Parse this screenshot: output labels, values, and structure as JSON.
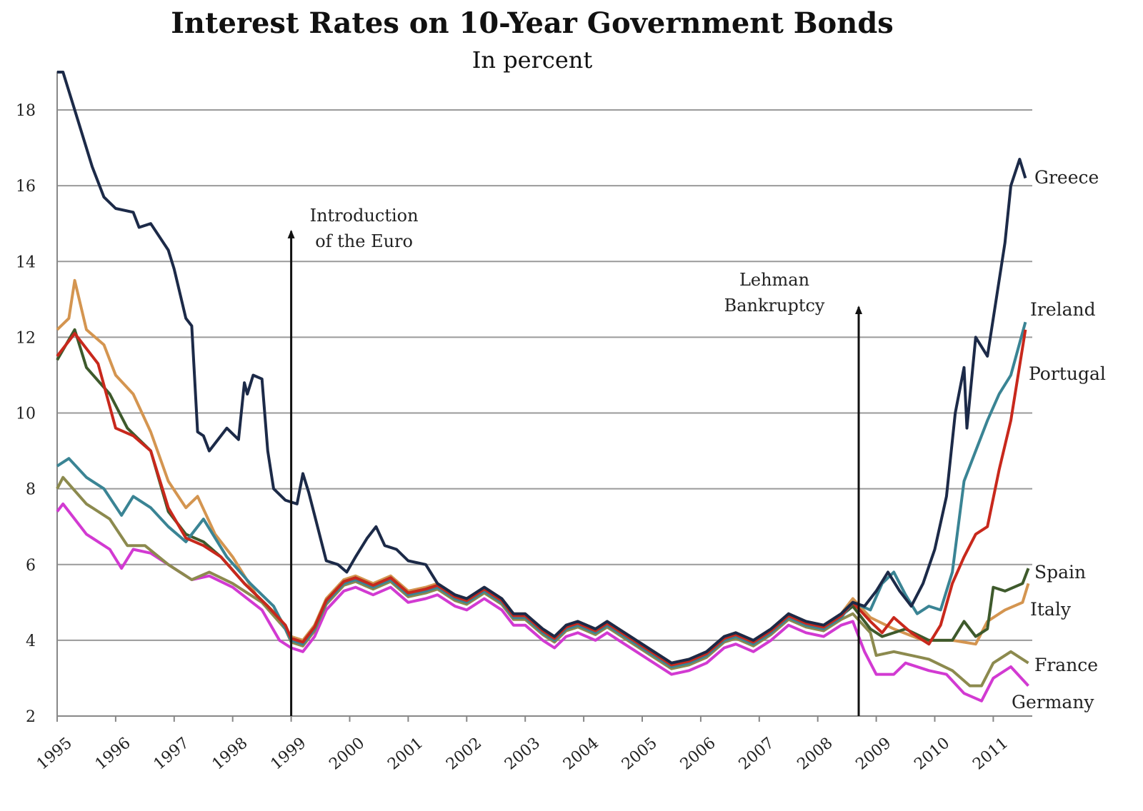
{
  "chart_data": {
    "type": "line",
    "title": "Interest Rates on 10-Year Government Bonds",
    "subtitle": "In percent",
    "xlabel": "",
    "ylabel": "",
    "xlim": [
      1995,
      2011.7
    ],
    "ylim": [
      2,
      19
    ],
    "grid": true,
    "y_ticks": [
      2,
      4,
      6,
      8,
      10,
      12,
      14,
      16,
      18
    ],
    "x_ticks": [
      1995,
      1996,
      1997,
      1998,
      1999,
      2000,
      2001,
      2002,
      2003,
      2004,
      2005,
      2006,
      2007,
      2008,
      2009,
      2010,
      2011
    ],
    "annotations": [
      {
        "lines": [
          "Introduction",
          "of the Euro"
        ],
        "x": 1999.0,
        "y_top": 14.8
      },
      {
        "lines": [
          "Lehman",
          "Bankruptcy"
        ],
        "x": 2008.7,
        "y_top": 12.8
      }
    ],
    "shared_period": {
      "note": "period where all series move together",
      "points": [
        [
          1999.0,
          4.0
        ],
        [
          1999.2,
          3.9
        ],
        [
          1999.4,
          4.3
        ],
        [
          1999.6,
          5.0
        ],
        [
          1999.9,
          5.5
        ],
        [
          2000.1,
          5.6
        ],
        [
          2000.4,
          5.4
        ],
        [
          2000.7,
          5.6
        ],
        [
          2001.0,
          5.2
        ],
        [
          2001.3,
          5.3
        ],
        [
          2001.5,
          5.4
        ],
        [
          2001.8,
          5.1
        ],
        [
          2002.0,
          5.0
        ],
        [
          2002.3,
          5.3
        ],
        [
          2002.6,
          5.0
        ],
        [
          2002.8,
          4.6
        ],
        [
          2003.0,
          4.6
        ],
        [
          2003.3,
          4.2
        ],
        [
          2003.5,
          4.0
        ],
        [
          2003.7,
          4.3
        ],
        [
          2003.9,
          4.4
        ],
        [
          2004.2,
          4.2
        ],
        [
          2004.4,
          4.4
        ],
        [
          2004.6,
          4.2
        ],
        [
          2004.9,
          3.9
        ],
        [
          2005.2,
          3.6
        ],
        [
          2005.5,
          3.3
        ],
        [
          2005.8,
          3.4
        ],
        [
          2006.1,
          3.6
        ],
        [
          2006.4,
          4.0
        ],
        [
          2006.6,
          4.1
        ],
        [
          2006.9,
          3.9
        ],
        [
          2007.2,
          4.2
        ],
        [
          2007.5,
          4.6
        ],
        [
          2007.8,
          4.4
        ],
        [
          2008.1,
          4.3
        ],
        [
          2008.4,
          4.6
        ]
      ]
    },
    "series": [
      {
        "name": "Germany",
        "color": "#d23ad2",
        "shared_offset": -0.2,
        "before": [
          [
            1995.0,
            7.4
          ],
          [
            1995.1,
            7.6
          ],
          [
            1995.5,
            6.8
          ],
          [
            1995.9,
            6.4
          ],
          [
            1996.1,
            5.9
          ],
          [
            1996.3,
            6.4
          ],
          [
            1996.6,
            6.3
          ],
          [
            1996.9,
            6.0
          ],
          [
            1997.3,
            5.6
          ],
          [
            1997.6,
            5.7
          ],
          [
            1998.0,
            5.4
          ],
          [
            1998.5,
            4.8
          ],
          [
            1998.8,
            4.0
          ]
        ],
        "after": [
          [
            2008.6,
            4.5
          ],
          [
            2008.8,
            3.7
          ],
          [
            2009.0,
            3.1
          ],
          [
            2009.3,
            3.1
          ],
          [
            2009.5,
            3.4
          ],
          [
            2009.9,
            3.2
          ],
          [
            2010.2,
            3.1
          ],
          [
            2010.5,
            2.6
          ],
          [
            2010.8,
            2.4
          ],
          [
            2011.0,
            3.0
          ],
          [
            2011.3,
            3.3
          ],
          [
            2011.6,
            2.8
          ]
        ]
      },
      {
        "name": "France",
        "color": "#8c8a4e",
        "shared_offset": -0.05,
        "before": [
          [
            1995.0,
            8.0
          ],
          [
            1995.1,
            8.3
          ],
          [
            1995.5,
            7.6
          ],
          [
            1995.9,
            7.2
          ],
          [
            1996.2,
            6.5
          ],
          [
            1996.5,
            6.5
          ],
          [
            1996.9,
            6.0
          ],
          [
            1997.3,
            5.6
          ],
          [
            1997.6,
            5.8
          ],
          [
            1998.0,
            5.5
          ],
          [
            1998.5,
            5.0
          ],
          [
            1998.9,
            4.3
          ]
        ],
        "after": [
          [
            2008.6,
            4.7
          ],
          [
            2008.9,
            4.2
          ],
          [
            2009.0,
            3.6
          ],
          [
            2009.3,
            3.7
          ],
          [
            2009.6,
            3.6
          ],
          [
            2009.9,
            3.5
          ],
          [
            2010.3,
            3.2
          ],
          [
            2010.6,
            2.8
          ],
          [
            2010.8,
            2.8
          ],
          [
            2011.0,
            3.4
          ],
          [
            2011.3,
            3.7
          ],
          [
            2011.6,
            3.4
          ]
        ]
      },
      {
        "name": "Italy",
        "color": "#d49550",
        "shared_offset": 0.1,
        "before": [
          [
            1995.0,
            12.2
          ],
          [
            1995.2,
            12.5
          ],
          [
            1995.3,
            13.5
          ],
          [
            1995.5,
            12.2
          ],
          [
            1995.8,
            11.8
          ],
          [
            1996.0,
            11.0
          ],
          [
            1996.3,
            10.5
          ],
          [
            1996.6,
            9.5
          ],
          [
            1996.9,
            8.2
          ],
          [
            1997.2,
            7.5
          ],
          [
            1997.4,
            7.8
          ],
          [
            1997.7,
            6.8
          ],
          [
            1998.0,
            6.2
          ],
          [
            1998.4,
            5.2
          ],
          [
            1998.8,
            4.6
          ]
        ],
        "after": [
          [
            2008.6,
            5.1
          ],
          [
            2008.9,
            4.6
          ],
          [
            2009.3,
            4.3
          ],
          [
            2009.8,
            4.0
          ],
          [
            2010.3,
            4.0
          ],
          [
            2010.7,
            3.9
          ],
          [
            2010.9,
            4.5
          ],
          [
            2011.2,
            4.8
          ],
          [
            2011.5,
            5.0
          ],
          [
            2011.6,
            5.5
          ]
        ]
      },
      {
        "name": "Spain",
        "color": "#3e5a2c",
        "shared_offset": 0.05,
        "before": [
          [
            1995.0,
            11.4
          ],
          [
            1995.3,
            12.2
          ],
          [
            1995.5,
            11.2
          ],
          [
            1995.9,
            10.5
          ],
          [
            1996.2,
            9.6
          ],
          [
            1996.6,
            9.0
          ],
          [
            1996.9,
            7.4
          ],
          [
            1997.2,
            6.8
          ],
          [
            1997.5,
            6.6
          ],
          [
            1997.8,
            6.2
          ],
          [
            1998.2,
            5.5
          ],
          [
            1998.6,
            4.9
          ],
          [
            1998.9,
            4.4
          ]
        ],
        "after": [
          [
            2008.6,
            4.9
          ],
          [
            2008.9,
            4.3
          ],
          [
            2009.1,
            4.1
          ],
          [
            2009.5,
            4.3
          ],
          [
            2009.9,
            4.0
          ],
          [
            2010.3,
            4.0
          ],
          [
            2010.5,
            4.5
          ],
          [
            2010.7,
            4.1
          ],
          [
            2010.9,
            4.3
          ],
          [
            2011.0,
            5.4
          ],
          [
            2011.2,
            5.3
          ],
          [
            2011.5,
            5.5
          ],
          [
            2011.6,
            5.9
          ]
        ]
      },
      {
        "name": "Ireland",
        "color": "#3a8494",
        "shared_offset": 0.0,
        "before": [
          [
            1995.0,
            8.6
          ],
          [
            1995.2,
            8.8
          ],
          [
            1995.5,
            8.3
          ],
          [
            1995.8,
            8.0
          ],
          [
            1996.1,
            7.3
          ],
          [
            1996.3,
            7.8
          ],
          [
            1996.6,
            7.5
          ],
          [
            1996.9,
            7.0
          ],
          [
            1997.2,
            6.6
          ],
          [
            1997.5,
            7.2
          ],
          [
            1997.9,
            6.2
          ],
          [
            1998.3,
            5.5
          ],
          [
            1998.7,
            4.9
          ]
        ],
        "after": [
          [
            2008.6,
            5.0
          ],
          [
            2008.9,
            4.8
          ],
          [
            2009.1,
            5.5
          ],
          [
            2009.3,
            5.8
          ],
          [
            2009.5,
            5.2
          ],
          [
            2009.7,
            4.7
          ],
          [
            2009.9,
            4.9
          ],
          [
            2010.1,
            4.8
          ],
          [
            2010.3,
            5.8
          ],
          [
            2010.5,
            8.2
          ],
          [
            2010.7,
            9.0
          ],
          [
            2010.9,
            9.8
          ],
          [
            2011.1,
            10.5
          ],
          [
            2011.3,
            11.0
          ],
          [
            2011.55,
            12.4
          ]
        ]
      },
      {
        "name": "Portugal",
        "color": "#c8281c",
        "shared_offset": 0.05,
        "before": [
          [
            1995.0,
            11.5
          ],
          [
            1995.3,
            12.1
          ],
          [
            1995.7,
            11.3
          ],
          [
            1996.0,
            9.6
          ],
          [
            1996.3,
            9.4
          ],
          [
            1996.6,
            9.0
          ],
          [
            1996.9,
            7.5
          ],
          [
            1997.2,
            6.7
          ],
          [
            1997.5,
            6.5
          ],
          [
            1997.8,
            6.2
          ],
          [
            1998.2,
            5.5
          ],
          [
            1998.6,
            4.9
          ],
          [
            1998.9,
            4.4
          ]
        ],
        "after": [
          [
            2008.6,
            5.0
          ],
          [
            2008.9,
            4.5
          ],
          [
            2009.1,
            4.2
          ],
          [
            2009.3,
            4.6
          ],
          [
            2009.6,
            4.2
          ],
          [
            2009.9,
            3.9
          ],
          [
            2010.1,
            4.4
          ],
          [
            2010.3,
            5.5
          ],
          [
            2010.5,
            6.2
          ],
          [
            2010.7,
            6.8
          ],
          [
            2010.9,
            7.0
          ],
          [
            2011.1,
            8.5
          ],
          [
            2011.3,
            9.8
          ],
          [
            2011.55,
            12.2
          ]
        ]
      },
      {
        "name": "Greece",
        "color": "#1c2a48",
        "shared_offset": 0.1,
        "before": [
          [
            1995.0,
            19.0
          ],
          [
            1995.1,
            19.0
          ],
          [
            1995.3,
            18.0
          ],
          [
            1995.6,
            16.5
          ],
          [
            1995.8,
            15.7
          ],
          [
            1996.0,
            15.4
          ],
          [
            1996.3,
            15.3
          ],
          [
            1996.4,
            14.9
          ],
          [
            1996.6,
            15.0
          ],
          [
            1996.9,
            14.3
          ],
          [
            1997.0,
            13.8
          ],
          [
            1997.2,
            12.5
          ],
          [
            1997.3,
            12.3
          ],
          [
            1997.4,
            9.5
          ],
          [
            1997.5,
            9.4
          ],
          [
            1997.6,
            9.0
          ],
          [
            1997.8,
            9.4
          ],
          [
            1997.9,
            9.6
          ],
          [
            1998.1,
            9.3
          ],
          [
            1998.2,
            10.8
          ],
          [
            1998.25,
            10.5
          ],
          [
            1998.35,
            11.0
          ],
          [
            1998.5,
            10.9
          ],
          [
            1998.6,
            9.0
          ],
          [
            1998.7,
            8.0
          ],
          [
            1998.9,
            7.7
          ],
          [
            1999.1,
            7.6
          ],
          [
            1999.2,
            8.4
          ],
          [
            1999.3,
            7.9
          ],
          [
            1999.4,
            7.3
          ],
          [
            1999.6,
            6.1
          ],
          [
            1999.8,
            6.0
          ],
          [
            1999.95,
            5.8
          ],
          [
            2000.1,
            6.2
          ],
          [
            2000.3,
            6.7
          ],
          [
            2000.45,
            7.0
          ],
          [
            2000.6,
            6.5
          ],
          [
            2000.8,
            6.4
          ],
          [
            2001.0,
            6.1
          ],
          [
            2001.3,
            6.0
          ],
          [
            2001.5,
            5.5
          ]
        ],
        "after": [
          [
            2008.6,
            5.0
          ],
          [
            2008.8,
            4.9
          ],
          [
            2009.0,
            5.3
          ],
          [
            2009.2,
            5.8
          ],
          [
            2009.4,
            5.3
          ],
          [
            2009.6,
            4.9
          ],
          [
            2009.8,
            5.5
          ],
          [
            2010.0,
            6.4
          ],
          [
            2010.2,
            7.8
          ],
          [
            2010.35,
            10.0
          ],
          [
            2010.5,
            11.2
          ],
          [
            2010.55,
            9.6
          ],
          [
            2010.7,
            12.0
          ],
          [
            2010.9,
            11.5
          ],
          [
            2011.0,
            12.5
          ],
          [
            2011.2,
            14.5
          ],
          [
            2011.3,
            16.0
          ],
          [
            2011.45,
            16.7
          ],
          [
            2011.55,
            16.2
          ]
        ]
      }
    ]
  }
}
